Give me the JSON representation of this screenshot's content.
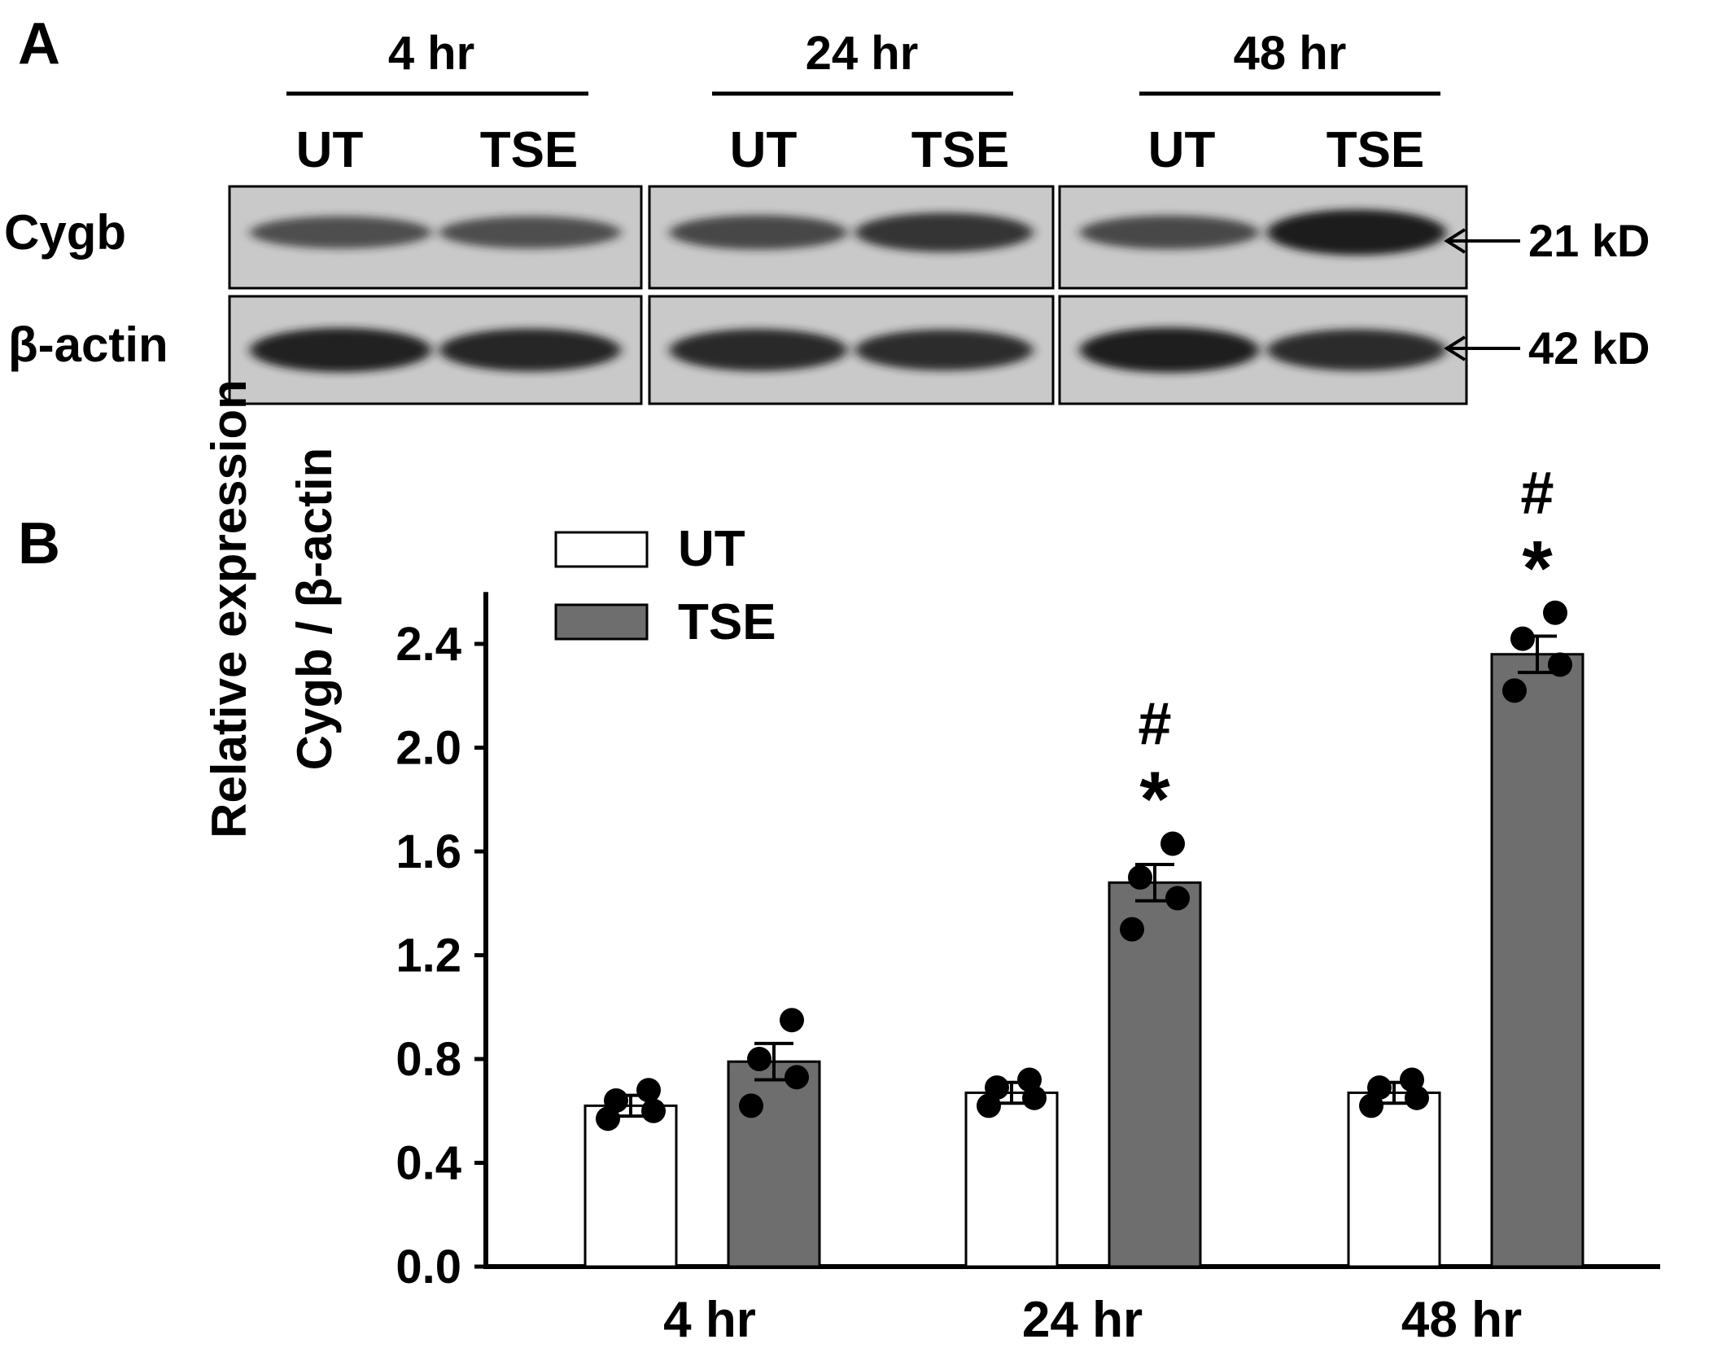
{
  "panel_a": {
    "label": "A",
    "timepoints": [
      "4 hr",
      "24 hr",
      "48 hr"
    ],
    "lanes": [
      "UT",
      "TSE"
    ],
    "rows": [
      {
        "name": "Cygb",
        "marker": "21 kD",
        "intensities": [
          0.55,
          0.55,
          0.62,
          0.78,
          0.6,
          1.0
        ]
      },
      {
        "name": "β-actin",
        "marker": "42 kD",
        "intensities": [
          0.95,
          0.9,
          0.88,
          0.84,
          0.98,
          0.86
        ]
      }
    ],
    "colors": {
      "blot_bg": "#c9c9c9",
      "band": "#1a1a1a"
    }
  },
  "panel_b": {
    "label": "B"
  },
  "chart_data": {
    "type": "bar",
    "categories": [
      "4 hr",
      "24 hr",
      "48 hr"
    ],
    "series": [
      {
        "name": "UT",
        "values": [
          0.62,
          0.67,
          0.67
        ],
        "sem": [
          0.04,
          0.04,
          0.04
        ],
        "points": [
          [
            0.57,
            0.6,
            0.64,
            0.68
          ],
          [
            0.62,
            0.65,
            0.69,
            0.72
          ],
          [
            0.62,
            0.65,
            0.69,
            0.72
          ]
        ],
        "color": "#ffffff",
        "markers": [
          "",
          "",
          ""
        ]
      },
      {
        "name": "TSE",
        "values": [
          0.79,
          1.48,
          2.36
        ],
        "sem": [
          0.07,
          0.07,
          0.07
        ],
        "points": [
          [
            0.62,
            0.73,
            0.8,
            0.95
          ],
          [
            1.3,
            1.42,
            1.5,
            1.63
          ],
          [
            2.22,
            2.32,
            2.42,
            2.52
          ]
        ],
        "color": "#6e6e6e",
        "markers": [
          "",
          "*\n#",
          "*\n#"
        ]
      }
    ],
    "ylabel": [
      "Relative expression",
      "Cygb / β-actin"
    ],
    "xlabel": "",
    "ylim": [
      0,
      2.6
    ],
    "yticks": [
      "0.0",
      "0.4",
      "0.8",
      "1.2",
      "1.6",
      "2.0",
      "2.4"
    ],
    "grid": false,
    "legend": "top-left",
    "markers": {
      "star": "*",
      "hash": "#"
    }
  }
}
